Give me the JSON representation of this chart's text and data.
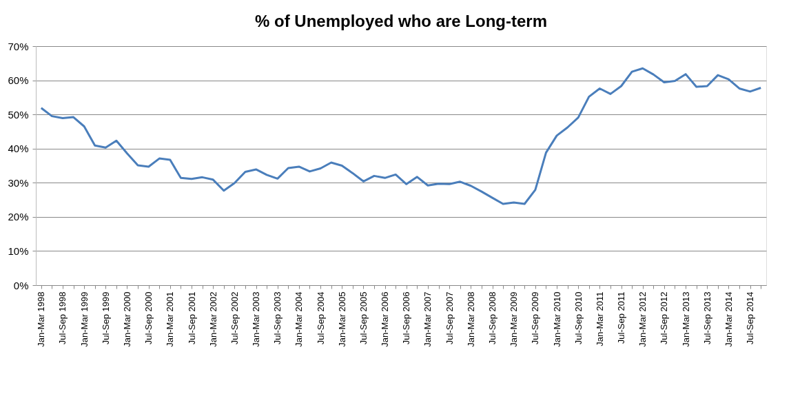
{
  "chart_data": {
    "type": "line",
    "title": "% of Unemployed who are Long-term",
    "categories": [
      "Jan-Mar 1998",
      null,
      "Jul-Sep 1998",
      null,
      "Jan-Mar 1999",
      null,
      "Jul-Sep 1999",
      null,
      "Jan-Mar 2000",
      null,
      "Jul-Sep  2000",
      null,
      "Jan-Mar 2001",
      null,
      "Jul-Sep  2001",
      null,
      "Jan-Mar 2002",
      null,
      "Jul-Sep  2002",
      null,
      "Jan-Mar 2003",
      null,
      "Jul-Sep  2003",
      null,
      "Jan-Mar 2004",
      null,
      "Jul-Sep  2004",
      null,
      "Jan-Mar 2005",
      null,
      "Jul-Sep  2005",
      null,
      "Jan-Mar 2006",
      null,
      "Jul-Sep  2006",
      null,
      "Jan-Mar 2007",
      null,
      "Jul-Sep  2007",
      null,
      "Jan-Mar 2008",
      null,
      "Jul-Sep  2008",
      null,
      "Jan-Mar 2009",
      null,
      "Jul-Sep  2009",
      null,
      "Jan-Mar 2010",
      null,
      "Jul-Sep  2010",
      null,
      "Jan-Mar 2011",
      null,
      "Jul-Sep  2011",
      null,
      "Jan-Mar 2012",
      null,
      "Jul-Sep  2012",
      null,
      "Jan-Mar 2013",
      null,
      "Jul-Sep  2013",
      null,
      "Jan-Mar 2014",
      null,
      "Jul-Sep  2014",
      null
    ],
    "series": [
      {
        "color": "#4a7ebb",
        "values": [
          51.9,
          49.5,
          48.9,
          49.2,
          46.5,
          40.9,
          40.3,
          42.3,
          38.6,
          35.1,
          34.7,
          37.1,
          36.7,
          31.4,
          31.1,
          31.6,
          30.9,
          27.7,
          29.9,
          33.2,
          33.9,
          32.3,
          31.2,
          34.3,
          34.7,
          33.3,
          34.2,
          35.9,
          35.0,
          32.8,
          30.4,
          32.0,
          31.4,
          32.4,
          29.6,
          31.7,
          29.2,
          29.7,
          29.6,
          30.3,
          29.1,
          27.4,
          25.6,
          23.8,
          24.2,
          23.8,
          27.9,
          38.8,
          43.8,
          46.2,
          49.1,
          55.2,
          57.6,
          56.0,
          58.3,
          62.5,
          63.5,
          61.7,
          59.4,
          59.8,
          61.8,
          58.1,
          58.3,
          61.5,
          60.3,
          57.6,
          56.7,
          57.8
        ]
      }
    ],
    "ylim": [
      0,
      70
    ],
    "yticks": [
      {
        "value": 0,
        "label": "0%"
      },
      {
        "value": 10,
        "label": "10%"
      },
      {
        "value": 20,
        "label": "20%"
      },
      {
        "value": 30,
        "label": "30%"
      },
      {
        "value": 40,
        "label": "40%"
      },
      {
        "value": 50,
        "label": "50%"
      },
      {
        "value": 60,
        "label": "60%"
      },
      {
        "value": 70,
        "label": "70%"
      }
    ],
    "grid": "y",
    "marker": "none",
    "line_style": "solid"
  }
}
